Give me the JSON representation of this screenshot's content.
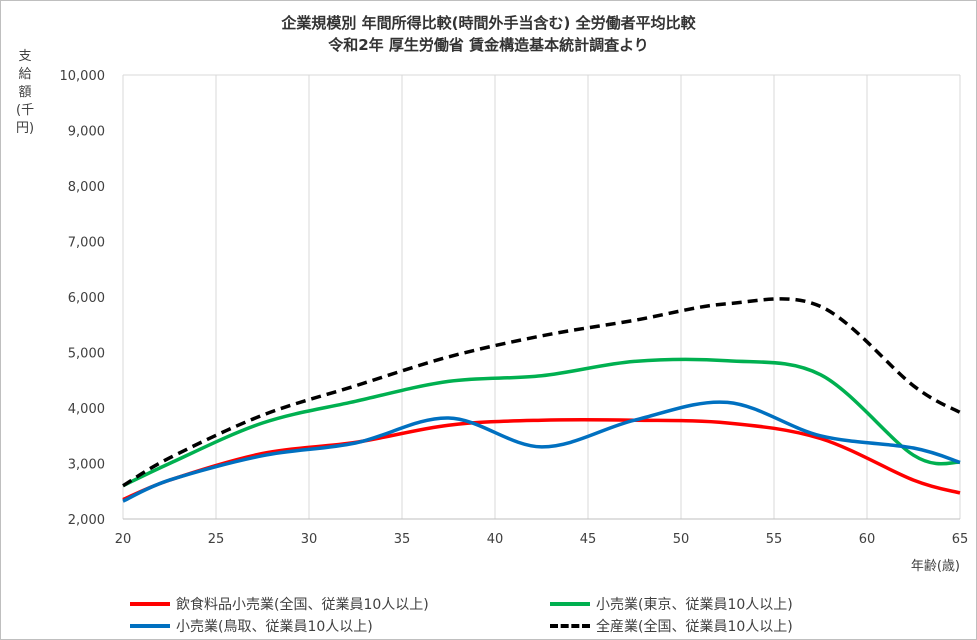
{
  "title_line1": "企業規模別 年間所得比較(時間外手当含む) 全労働者平均比較",
  "title_line2": "令和2年 厚生労働省 賃金構造基本統計調査より",
  "chart_data": {
    "type": "line",
    "title": "企業規模別 年間所得比較(時間外手当含む) 全労働者平均比較 令和2年 厚生労働省 賃金構造基本統計調査より",
    "xlabel": "年齢(歳)",
    "ylabel": "支給額(千円)",
    "xlim": [
      20,
      65
    ],
    "ylim": [
      2000,
      10000
    ],
    "xticks": [
      20,
      25,
      30,
      35,
      40,
      45,
      50,
      55,
      60,
      65
    ],
    "yticks": [
      2000,
      3000,
      4000,
      5000,
      6000,
      7000,
      8000,
      9000,
      10000
    ],
    "ytick_labels": [
      "2,000",
      "3,000",
      "4,000",
      "5,000",
      "6,000",
      "7,000",
      "8,000",
      "9,000",
      "10,000"
    ],
    "grid": "vertical",
    "legend_position": "bottom",
    "series": [
      {
        "name": "飲食料品小売業(全国、従業員10人以上)",
        "color": "#ff0000",
        "dash": "solid",
        "points": [
          [
            20,
            2350
          ],
          [
            22.5,
            2700
          ],
          [
            27.5,
            3180
          ],
          [
            32.5,
            3380
          ],
          [
            37.5,
            3690
          ],
          [
            42.5,
            3780
          ],
          [
            47.5,
            3780
          ],
          [
            52.5,
            3730
          ],
          [
            57.5,
            3450
          ],
          [
            62.5,
            2700
          ],
          [
            65,
            2470
          ]
        ]
      },
      {
        "name": "小売業(東京、従業員10人以上)",
        "color": "#00b050",
        "dash": "solid",
        "points": [
          [
            20,
            2600
          ],
          [
            22.5,
            3000
          ],
          [
            27.5,
            3730
          ],
          [
            32.5,
            4120
          ],
          [
            37.5,
            4480
          ],
          [
            42.5,
            4580
          ],
          [
            47.5,
            4840
          ],
          [
            52.5,
            4850
          ],
          [
            57.5,
            4600
          ],
          [
            62.5,
            3150
          ],
          [
            65,
            3020
          ]
        ]
      },
      {
        "name": "小売業(鳥取、従業員10人以上)",
        "color": "#0070c0",
        "dash": "solid",
        "points": [
          [
            20,
            2320
          ],
          [
            22.5,
            2700
          ],
          [
            27.5,
            3140
          ],
          [
            32.5,
            3370
          ],
          [
            37.5,
            3820
          ],
          [
            42.5,
            3300
          ],
          [
            47.5,
            3780
          ],
          [
            52.5,
            4100
          ],
          [
            57.5,
            3500
          ],
          [
            62.5,
            3280
          ],
          [
            65,
            3020
          ]
        ]
      },
      {
        "name": "全産業(全国、従業員10人以上)",
        "color": "#000000",
        "dash": "dashed",
        "points": [
          [
            20,
            2600
          ],
          [
            22.5,
            3100
          ],
          [
            27.5,
            3870
          ],
          [
            32.5,
            4400
          ],
          [
            37.5,
            4920
          ],
          [
            42.5,
            5300
          ],
          [
            47.5,
            5580
          ],
          [
            52.5,
            5880
          ],
          [
            57.5,
            5830
          ],
          [
            62.5,
            4400
          ],
          [
            65,
            3920
          ]
        ]
      }
    ]
  }
}
